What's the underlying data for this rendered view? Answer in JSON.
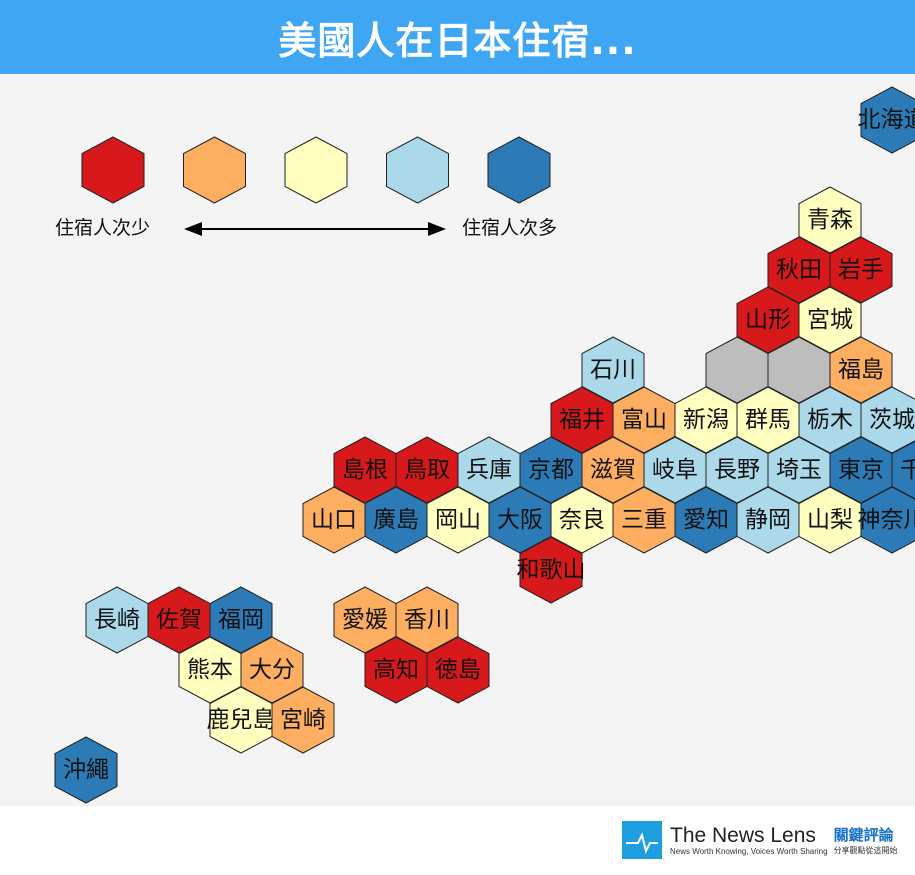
{
  "title": "美國人在日本住宿...",
  "colors": {
    "level1": "#d7191c",
    "level2": "#fdae61",
    "level3": "#ffffbf",
    "level4": "#abd9e9",
    "level5": "#2c7bb6",
    "nodata": "#bdbdbd",
    "header": "#3ea6f2"
  },
  "legend": {
    "low_label": "住宿人次少",
    "high_label": "住宿人次多",
    "levels": [
      1,
      2,
      3,
      4,
      5
    ]
  },
  "prefectures": [
    {
      "name": "北海道",
      "level": 5,
      "col": 13.5,
      "row": -2
    },
    {
      "name": "青森",
      "level": 3,
      "col": 12.5,
      "row": 0
    },
    {
      "name": "秋田",
      "level": 1,
      "col": 12,
      "row": 1
    },
    {
      "name": "岩手",
      "level": 1,
      "col": 13,
      "row": 1
    },
    {
      "name": "山形",
      "level": 1,
      "col": 11.5,
      "row": 2
    },
    {
      "name": "宮城",
      "level": 3,
      "col": 12.5,
      "row": 2
    },
    {
      "name": "石川",
      "level": 4,
      "col": 9,
      "row": 3
    },
    {
      "name": "",
      "level": 0,
      "col": 11,
      "row": 3
    },
    {
      "name": "",
      "level": 0,
      "col": 12,
      "row": 3
    },
    {
      "name": "福島",
      "level": 2,
      "col": 13,
      "row": 3
    },
    {
      "name": "福井",
      "level": 1,
      "col": 8.5,
      "row": 4
    },
    {
      "name": "富山",
      "level": 2,
      "col": 9.5,
      "row": 4
    },
    {
      "name": "新潟",
      "level": 3,
      "col": 10.5,
      "row": 4
    },
    {
      "name": "群馬",
      "level": 3,
      "col": 11.5,
      "row": 4
    },
    {
      "name": "栃木",
      "level": 4,
      "col": 12.5,
      "row": 4
    },
    {
      "name": "茨城",
      "level": 4,
      "col": 13.5,
      "row": 4
    },
    {
      "name": "島根",
      "level": 1,
      "col": 5,
      "row": 5
    },
    {
      "name": "鳥取",
      "level": 1,
      "col": 6,
      "row": 5
    },
    {
      "name": "兵庫",
      "level": 4,
      "col": 7,
      "row": 5
    },
    {
      "name": "京都",
      "level": 5,
      "col": 8,
      "row": 5
    },
    {
      "name": "滋賀",
      "level": 2,
      "col": 9,
      "row": 5
    },
    {
      "name": "岐阜",
      "level": 4,
      "col": 10,
      "row": 5
    },
    {
      "name": "長野",
      "level": 4,
      "col": 11,
      "row": 5
    },
    {
      "name": "埼玉",
      "level": 4,
      "col": 12,
      "row": 5
    },
    {
      "name": "東京",
      "level": 5,
      "col": 13,
      "row": 5
    },
    {
      "name": "千葉",
      "level": 5,
      "col": 14,
      "row": 5
    },
    {
      "name": "山口",
      "level": 2,
      "col": 4.5,
      "row": 6
    },
    {
      "name": "廣島",
      "level": 5,
      "col": 5.5,
      "row": 6
    },
    {
      "name": "岡山",
      "level": 3,
      "col": 6.5,
      "row": 6
    },
    {
      "name": "大阪",
      "level": 5,
      "col": 7.5,
      "row": 6
    },
    {
      "name": "奈良",
      "level": 3,
      "col": 8.5,
      "row": 6
    },
    {
      "name": "三重",
      "level": 2,
      "col": 9.5,
      "row": 6
    },
    {
      "name": "愛知",
      "level": 5,
      "col": 10.5,
      "row": 6
    },
    {
      "name": "静岡",
      "level": 4,
      "col": 11.5,
      "row": 6
    },
    {
      "name": "山梨",
      "level": 3,
      "col": 12.5,
      "row": 6
    },
    {
      "name": "神奈川",
      "level": 5,
      "col": 13.5,
      "row": 6
    },
    {
      "name": "和歌山",
      "level": 1,
      "col": 8,
      "row": 7
    },
    {
      "name": "長崎",
      "level": 4,
      "col": 1,
      "row": 8
    },
    {
      "name": "佐賀",
      "level": 1,
      "col": 2,
      "row": 8
    },
    {
      "name": "福岡",
      "level": 5,
      "col": 3,
      "row": 8
    },
    {
      "name": "熊本",
      "level": 3,
      "col": 2.5,
      "row": 9
    },
    {
      "name": "大分",
      "level": 2,
      "col": 3.5,
      "row": 9
    },
    {
      "name": "鹿兒島",
      "level": 3,
      "col": 3,
      "row": 10
    },
    {
      "name": "宮崎",
      "level": 2,
      "col": 4,
      "row": 10
    },
    {
      "name": "愛媛",
      "level": 2,
      "col": 5,
      "row": 8
    },
    {
      "name": "香川",
      "level": 2,
      "col": 6,
      "row": 8
    },
    {
      "name": "高知",
      "level": 1,
      "col": 5.5,
      "row": 9
    },
    {
      "name": "徳島",
      "level": 1,
      "col": 6.5,
      "row": 9
    },
    {
      "name": "沖繩",
      "level": 5,
      "col": 0.5,
      "row": 11
    }
  ],
  "footer": {
    "brand": "The News Lens",
    "tagline": "News Worth Knowing, Voices Worth Sharing",
    "brand_zh": "關鍵評論",
    "tagline_zh": "分享觀點從這開始"
  }
}
